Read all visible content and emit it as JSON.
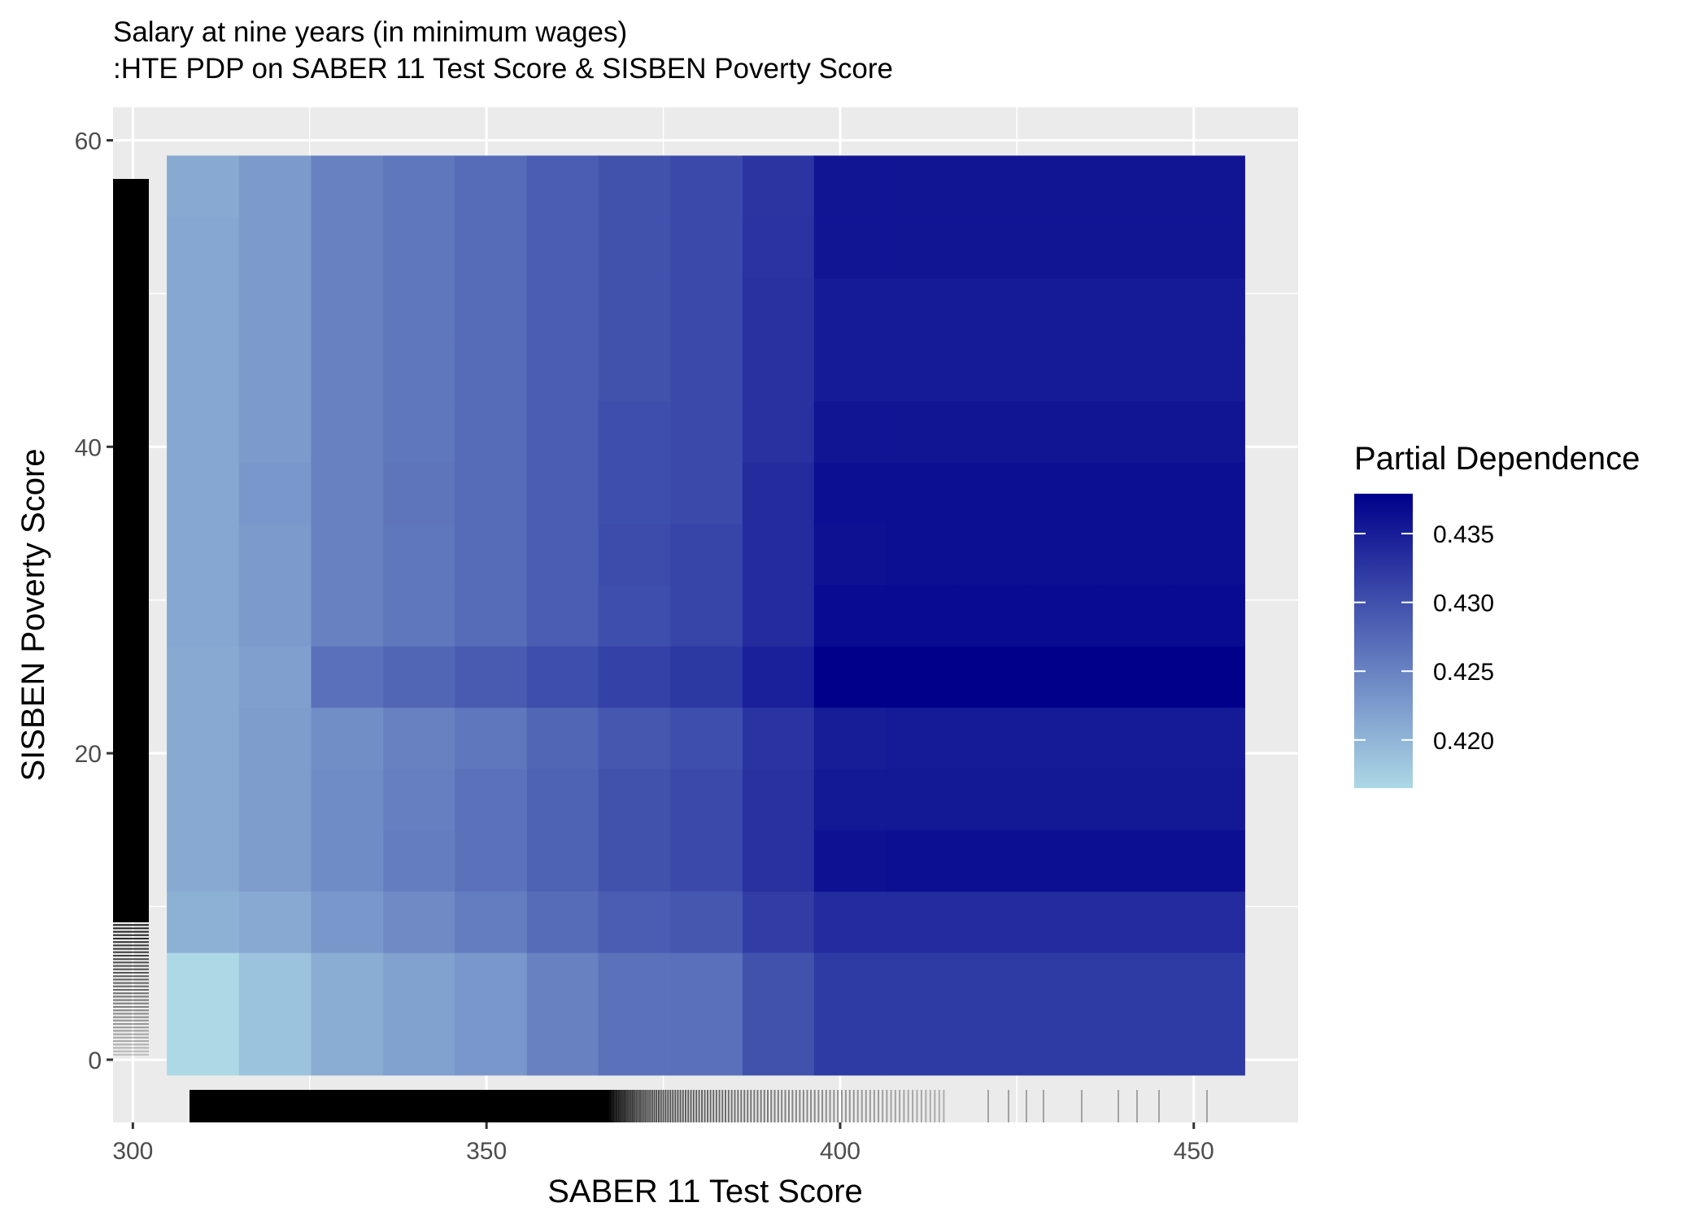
{
  "chart_data": {
    "type": "heatmap",
    "title": "Salary at nine years (in minimum wages)",
    "subtitle": ":HTE PDP on SABER 11 Test Score & SISBEN Poverty Score",
    "x_label": "SABER 11 Test Score",
    "y_label": "SISBEN Poverty Score",
    "legend_title": "Partial Dependence",
    "legend_position": "right",
    "grid": true,
    "xlim": [
      297.2,
      464.75
    ],
    "ylim": [
      -4.09,
      62.15
    ],
    "xticks": [
      300,
      350,
      400,
      450
    ],
    "yticks": [
      0,
      20,
      40,
      60
    ],
    "zlim": [
      0.4165,
      0.4379
    ],
    "zticks": [
      {
        "value": 0.42,
        "label": "0.420"
      },
      0.425,
      {
        "value": 0.43,
        "label": "0.430"
      },
      0.435
    ],
    "low_color": "#add8e6",
    "high_color": "#00008b",
    "x_edges": [
      304.8,
      315,
      325.2,
      335.4,
      345.5,
      355.7,
      365.8,
      376,
      386.2,
      396.3,
      406.5,
      416.6,
      426.8,
      437,
      447.1,
      457.2
    ],
    "y_edges": [
      -1,
      7,
      11,
      15,
      19,
      23,
      27,
      31,
      35,
      39,
      43,
      47,
      51,
      55,
      59
    ],
    "z": [
      [
        0.4165,
        0.4186,
        0.4208,
        0.4219,
        0.4229,
        0.4251,
        0.4266,
        0.4268,
        0.4298,
        0.4321,
        0.4321,
        0.4321,
        0.4321,
        0.4321,
        0.4321
      ],
      [
        0.4204,
        0.4212,
        0.4229,
        0.4242,
        0.4255,
        0.4272,
        0.4287,
        0.4293,
        0.4319,
        0.4336,
        0.4336,
        0.4336,
        0.4336,
        0.4336,
        0.4336
      ],
      [
        0.4212,
        0.4223,
        0.424,
        0.4255,
        0.4266,
        0.4281,
        0.4298,
        0.4306,
        0.433,
        0.4362,
        0.4364,
        0.4364,
        0.4364,
        0.4364,
        0.4364
      ],
      [
        0.4212,
        0.4223,
        0.424,
        0.4253,
        0.4266,
        0.4281,
        0.4298,
        0.4306,
        0.433,
        0.4355,
        0.4355,
        0.4355,
        0.4355,
        0.4355,
        0.4355
      ],
      [
        0.4212,
        0.4223,
        0.4238,
        0.4251,
        0.4261,
        0.4278,
        0.4293,
        0.4302,
        0.4328,
        0.4351,
        0.4353,
        0.4353,
        0.4353,
        0.4353,
        0.4353
      ],
      [
        0.4212,
        0.4221,
        0.4268,
        0.4278,
        0.4289,
        0.4302,
        0.4315,
        0.4323,
        0.4347,
        0.4379,
        0.4379,
        0.4379,
        0.4379,
        0.4379,
        0.4379
      ],
      [
        0.4214,
        0.4225,
        0.4251,
        0.4261,
        0.4272,
        0.4287,
        0.4302,
        0.4311,
        0.4336,
        0.4368,
        0.4368,
        0.4368,
        0.4368,
        0.4368,
        0.4368
      ],
      [
        0.4214,
        0.4225,
        0.4251,
        0.4261,
        0.4272,
        0.4287,
        0.4304,
        0.4311,
        0.4336,
        0.4362,
        0.4364,
        0.4364,
        0.4364,
        0.4364,
        0.4364
      ],
      [
        0.4214,
        0.4229,
        0.4251,
        0.4263,
        0.4272,
        0.4287,
        0.4302,
        0.4306,
        0.4336,
        0.4364,
        0.4364,
        0.4364,
        0.4364,
        0.4364,
        0.4364
      ],
      [
        0.4214,
        0.4225,
        0.4251,
        0.4261,
        0.4272,
        0.4287,
        0.4302,
        0.4306,
        0.433,
        0.4358,
        0.4358,
        0.4358,
        0.4358,
        0.4358,
        0.4358
      ],
      [
        0.4214,
        0.4225,
        0.4251,
        0.4261,
        0.4272,
        0.4287,
        0.4298,
        0.4306,
        0.433,
        0.4353,
        0.4353,
        0.4353,
        0.4353,
        0.4353,
        0.4353
      ],
      [
        0.4214,
        0.4225,
        0.4251,
        0.4261,
        0.4272,
        0.4287,
        0.4298,
        0.4306,
        0.433,
        0.4353,
        0.4353,
        0.4353,
        0.4353,
        0.4353,
        0.4353
      ],
      [
        0.4214,
        0.4225,
        0.4251,
        0.4261,
        0.4272,
        0.4287,
        0.4298,
        0.4306,
        0.4328,
        0.4358,
        0.4358,
        0.4358,
        0.4358,
        0.4358,
        0.4358
      ],
      [
        0.4212,
        0.4225,
        0.4251,
        0.4261,
        0.4272,
        0.4287,
        0.4298,
        0.4306,
        0.4326,
        0.4358,
        0.4358,
        0.4358,
        0.4358,
        0.4358,
        0.4358
      ]
    ]
  }
}
